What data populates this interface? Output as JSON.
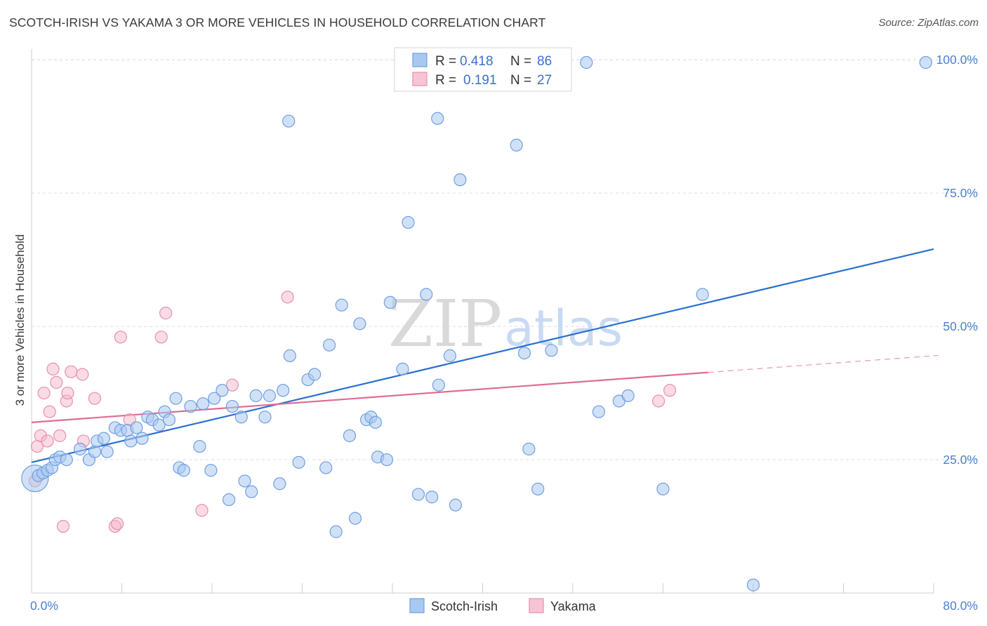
{
  "header": {
    "title": "SCOTCH-IRISH VS YAKAMA 3 OR MORE VEHICLES IN HOUSEHOLD CORRELATION CHART",
    "source": "Source: ZipAtlas.com"
  },
  "watermark": {
    "zip": "ZIP",
    "atlas": "atlas"
  },
  "colors": {
    "scotch_fill": "#a9c8f0",
    "scotch_stroke": "#6f9fe0",
    "scotch_line": "#2a6fd0",
    "yakama_fill": "#f6b8cb",
    "yakama_stroke": "#e890aa",
    "yakama_line": "#e06b95",
    "grid": "#dedede",
    "tick_text": "#4a7fd0"
  },
  "legend": {
    "rows": [
      {
        "r_label": "R =",
        "r_value": "0.418",
        "n_label": "N =",
        "n_value": "86"
      },
      {
        "r_label": "R =",
        "r_value": "0.191",
        "n_label": "N =",
        "n_value": "27"
      }
    ]
  },
  "chart_data": {
    "type": "scatter",
    "title": "SCOTCH-IRISH VS YAKAMA 3 OR MORE VEHICLES IN HOUSEHOLD CORRELATION CHART",
    "xlabel": "",
    "ylabel": "3 or more Vehicles in Household",
    "xlim": [
      0,
      80
    ],
    "ylim": [
      0,
      102
    ],
    "x_tick_labels": [
      "0.0%",
      "80.0%"
    ],
    "y_ticks": [
      25,
      50,
      75,
      100
    ],
    "y_tick_labels": [
      "25.0%",
      "50.0%",
      "75.0%",
      "100.0%"
    ],
    "grid": true,
    "legend_position": "top-center",
    "series": [
      {
        "name": "Scotch-Irish",
        "r": 0.418,
        "n": 86,
        "trend": {
          "x": [
            0,
            80
          ],
          "y": [
            24.5,
            64.5
          ],
          "dashed_from": null
        },
        "points": [
          [
            0.3,
            21.5,
            "large"
          ],
          [
            0.6,
            22.0
          ],
          [
            1.0,
            22.5
          ],
          [
            1.4,
            23.0
          ],
          [
            1.8,
            23.5
          ],
          [
            2.1,
            25.0
          ],
          [
            2.5,
            25.5
          ],
          [
            3.1,
            25.0
          ],
          [
            4.3,
            27.0
          ],
          [
            5.1,
            25.0
          ],
          [
            5.6,
            26.5
          ],
          [
            5.8,
            28.5
          ],
          [
            6.4,
            29.0
          ],
          [
            6.7,
            26.5
          ],
          [
            7.4,
            31.0
          ],
          [
            7.9,
            30.5
          ],
          [
            8.5,
            30.5
          ],
          [
            8.8,
            28.5
          ],
          [
            9.3,
            31.0
          ],
          [
            9.8,
            29.0
          ],
          [
            10.3,
            33.0
          ],
          [
            10.7,
            32.5
          ],
          [
            11.3,
            31.5
          ],
          [
            11.8,
            34.0
          ],
          [
            12.2,
            32.5
          ],
          [
            12.8,
            36.5
          ],
          [
            13.1,
            23.5
          ],
          [
            13.5,
            23.0
          ],
          [
            14.1,
            35.0
          ],
          [
            14.9,
            27.5
          ],
          [
            15.2,
            35.5
          ],
          [
            15.9,
            23.0
          ],
          [
            16.2,
            36.5
          ],
          [
            16.9,
            38.0
          ],
          [
            17.5,
            17.5
          ],
          [
            17.8,
            35.0
          ],
          [
            18.6,
            33.0
          ],
          [
            18.9,
            21.0
          ],
          [
            19.5,
            19.0
          ],
          [
            19.9,
            37.0
          ],
          [
            20.7,
            33.0
          ],
          [
            21.1,
            37.0
          ],
          [
            22.0,
            20.5
          ],
          [
            22.3,
            38.0
          ],
          [
            22.8,
            88.5
          ],
          [
            22.9,
            44.5
          ],
          [
            23.7,
            24.5
          ],
          [
            24.5,
            40.0
          ],
          [
            25.1,
            41.0
          ],
          [
            26.1,
            23.5
          ],
          [
            26.4,
            46.5
          ],
          [
            27.0,
            11.5
          ],
          [
            27.5,
            54.0
          ],
          [
            28.2,
            29.5
          ],
          [
            28.7,
            14.0
          ],
          [
            29.1,
            50.5
          ],
          [
            29.7,
            32.5
          ],
          [
            30.1,
            33.0
          ],
          [
            30.5,
            32.0
          ],
          [
            30.7,
            25.5
          ],
          [
            31.5,
            25.0
          ],
          [
            31.8,
            54.5
          ],
          [
            32.9,
            42.0
          ],
          [
            33.4,
            69.5
          ],
          [
            34.3,
            18.5
          ],
          [
            35.0,
            56.0
          ],
          [
            35.5,
            18.0
          ],
          [
            36.0,
            89.0
          ],
          [
            36.1,
            39.0
          ],
          [
            37.1,
            44.5
          ],
          [
            37.6,
            16.5
          ],
          [
            38.0,
            77.5
          ],
          [
            40.0,
            100.0
          ],
          [
            43.0,
            84.0
          ],
          [
            43.7,
            45.0
          ],
          [
            44.1,
            27.0
          ],
          [
            44.9,
            19.5
          ],
          [
            46.1,
            45.5
          ],
          [
            49.2,
            99.5
          ],
          [
            50.3,
            34.0
          ],
          [
            52.1,
            36.0
          ],
          [
            52.9,
            37.0
          ],
          [
            56.0,
            19.5
          ],
          [
            59.5,
            56.0
          ],
          [
            64.0,
            1.5
          ],
          [
            79.3,
            99.5
          ]
        ]
      },
      {
        "name": "Yakama",
        "r": 0.191,
        "n": 27,
        "trend": {
          "x": [
            0,
            80
          ],
          "y": [
            32.0,
            44.5
          ],
          "dashed_from": 60
        },
        "points": [
          [
            0.3,
            21.0
          ],
          [
            0.5,
            27.5
          ],
          [
            0.8,
            29.5
          ],
          [
            1.1,
            37.5
          ],
          [
            1.4,
            28.5
          ],
          [
            1.6,
            34.0
          ],
          [
            1.9,
            42.0
          ],
          [
            2.2,
            39.5
          ],
          [
            2.5,
            29.5
          ],
          [
            2.8,
            12.5
          ],
          [
            3.1,
            36.0
          ],
          [
            3.2,
            37.5
          ],
          [
            3.5,
            41.5
          ],
          [
            4.5,
            41.0
          ],
          [
            4.6,
            28.5
          ],
          [
            5.6,
            36.5
          ],
          [
            7.4,
            12.5
          ],
          [
            7.6,
            13.0
          ],
          [
            7.9,
            48.0
          ],
          [
            8.7,
            32.5
          ],
          [
            11.5,
            48.0
          ],
          [
            11.9,
            52.5
          ],
          [
            15.1,
            15.5
          ],
          [
            17.8,
            39.0
          ],
          [
            22.7,
            55.5
          ],
          [
            55.6,
            36.0
          ],
          [
            56.6,
            38.0
          ]
        ]
      }
    ]
  }
}
